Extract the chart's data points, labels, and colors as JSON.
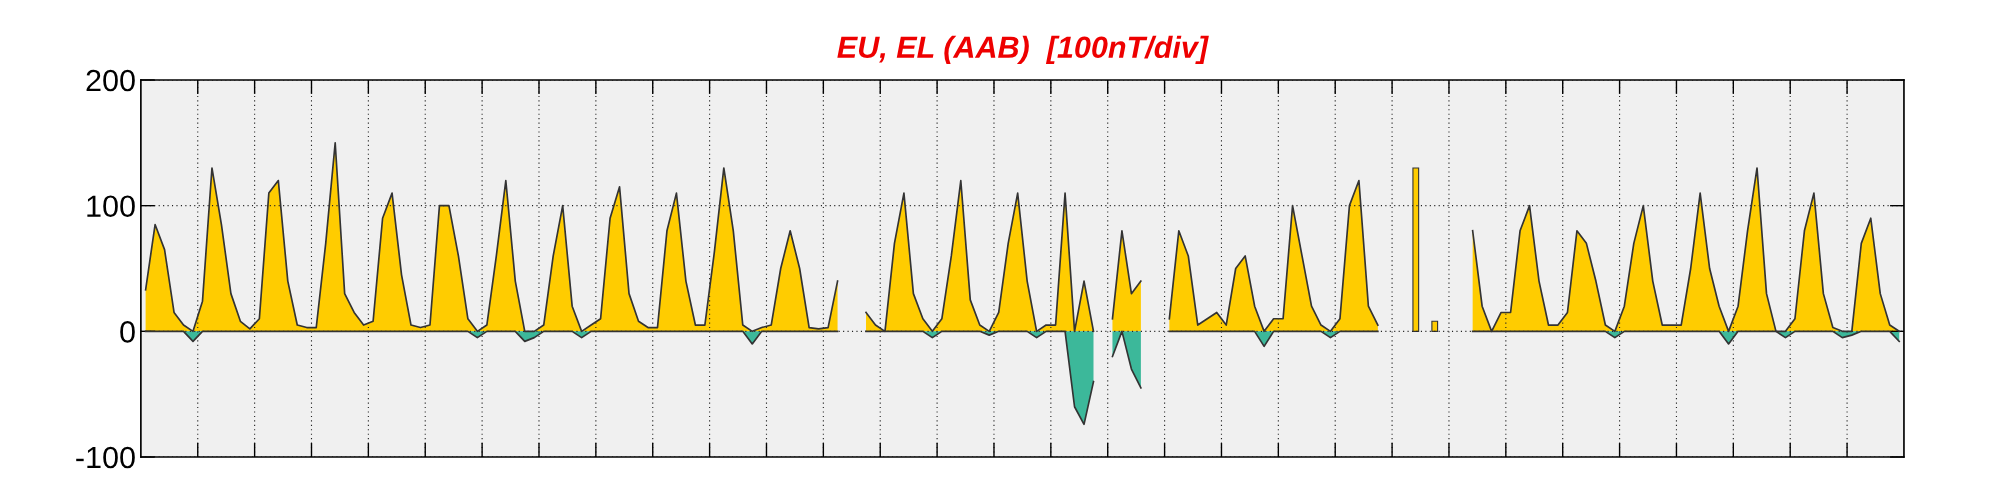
{
  "chart_data": {
    "type": "area",
    "title": "EU, EL (AAB)  [100nT/div]",
    "categories": [
      null,
      null,
      null,
      null,
      null,
      null,
      null,
      null,
      null,
      null,
      null,
      null,
      null,
      null,
      null,
      null,
      null,
      null,
      null,
      null,
      null,
      null,
      null,
      null,
      null,
      null,
      null,
      null,
      null,
      null,
      null,
      null,
      null,
      null,
      null,
      null,
      null,
      null,
      null,
      null,
      null,
      null,
      null,
      null,
      null,
      null,
      null,
      null,
      null,
      null,
      null,
      null,
      null,
      null,
      null,
      null,
      null,
      null,
      null,
      null,
      null,
      null,
      null,
      null,
      null,
      null,
      null,
      null,
      null,
      null,
      null,
      null,
      null,
      null,
      null,
      null,
      null,
      null,
      null,
      null,
      null,
      null,
      null,
      null,
      null,
      null,
      null,
      null,
      null,
      null,
      null,
      null,
      null,
      null,
      null,
      null,
      null,
      null,
      null,
      null,
      null,
      null,
      null,
      null,
      null,
      null,
      null,
      null,
      null,
      null,
      null,
      null,
      null,
      null,
      null,
      null,
      null,
      null,
      null,
      null,
      null,
      null,
      null,
      null,
      null,
      null,
      null,
      null,
      null,
      null,
      null,
      null,
      null,
      null,
      null,
      null,
      null,
      null,
      null,
      null,
      null,
      null,
      null,
      null,
      null,
      null,
      null,
      null,
      null,
      null,
      null,
      null,
      null,
      null,
      null,
      null,
      null,
      null,
      null,
      null,
      null,
      null,
      null,
      null,
      null,
      null,
      null,
      null,
      null,
      null,
      null,
      null,
      null,
      null,
      null,
      null,
      null,
      null,
      null,
      null,
      null,
      null,
      null,
      null,
      null,
      null
    ],
    "series": [
      {
        "color": "#ffcc00",
        "values": [
          33,
          85,
          65,
          15,
          5,
          0,
          24,
          130,
          85,
          30,
          8,
          2,
          10,
          110,
          120,
          40,
          5,
          3,
          3,
          70,
          150,
          30,
          15,
          5,
          8,
          90,
          110,
          45,
          5,
          3,
          5,
          100,
          100,
          60,
          10,
          0,
          5,
          60,
          120,
          40,
          0,
          0,
          5,
          60,
          100,
          20,
          0,
          5,
          10,
          90,
          115,
          30,
          8,
          3,
          3,
          80,
          110,
          40,
          5,
          5,
          63,
          130,
          80,
          5,
          0,
          3,
          5,
          50,
          80,
          50,
          3,
          2,
          3,
          40,
          null,
          null,
          15,
          5,
          0,
          70,
          110,
          30,
          10,
          0,
          10,
          60,
          120,
          25,
          5,
          0,
          15,
          70,
          110,
          40,
          0,
          5,
          5,
          110,
          0,
          40,
          0,
          null,
          10,
          80,
          30,
          40,
          null,
          null,
          10,
          80,
          60,
          5,
          10,
          15,
          5,
          50,
          60,
          20,
          0,
          10,
          10,
          100,
          60,
          20,
          5,
          0,
          10,
          100,
          120,
          20,
          5,
          null,
          null,
          null,
          130,
          null,
          8,
          null,
          null,
          null,
          80,
          20,
          0,
          15,
          15,
          80,
          100,
          40,
          5,
          5,
          15,
          80,
          70,
          40,
          5,
          0,
          20,
          70,
          100,
          40,
          5,
          5,
          5,
          50,
          110,
          50,
          20,
          0,
          20,
          80,
          130,
          30,
          0,
          0,
          10,
          80,
          110,
          30,
          3,
          0,
          0,
          70,
          90,
          30,
          5,
          0
        ]
      },
      {
        "color": "#3cb89a",
        "values": [
          0,
          0,
          0,
          0,
          0,
          -8,
          0,
          0,
          0,
          0,
          0,
          0,
          0,
          0,
          0,
          0,
          0,
          0,
          0,
          0,
          0,
          0,
          0,
          0,
          0,
          0,
          0,
          0,
          0,
          0,
          0,
          0,
          0,
          0,
          0,
          -5,
          0,
          0,
          0,
          0,
          -8,
          -5,
          0,
          0,
          0,
          0,
          -5,
          0,
          0,
          0,
          0,
          0,
          0,
          0,
          0,
          0,
          0,
          0,
          0,
          0,
          0,
          0,
          0,
          0,
          -10,
          0,
          0,
          0,
          0,
          0,
          0,
          0,
          0,
          0,
          null,
          null,
          0,
          0,
          0,
          0,
          0,
          0,
          0,
          -5,
          0,
          0,
          0,
          0,
          0,
          -3,
          0,
          0,
          0,
          0,
          -5,
          0,
          0,
          0,
          -60,
          -74,
          -40,
          null,
          -20,
          0,
          -30,
          -45,
          null,
          null,
          0,
          0,
          0,
          0,
          0,
          0,
          0,
          0,
          0,
          0,
          -12,
          0,
          0,
          0,
          0,
          0,
          0,
          -5,
          0,
          0,
          0,
          0,
          0,
          null,
          null,
          null,
          null,
          null,
          null,
          null,
          null,
          null,
          0,
          0,
          0,
          0,
          0,
          0,
          0,
          0,
          0,
          0,
          0,
          0,
          0,
          0,
          0,
          -5,
          0,
          0,
          0,
          0,
          0,
          0,
          0,
          0,
          0,
          0,
          0,
          -10,
          0,
          0,
          0,
          0,
          0,
          -5,
          0,
          0,
          0,
          0,
          0,
          -5,
          -3,
          0,
          0,
          0,
          0,
          -8
        ]
      }
    ],
    "ylim": [
      -100,
      200
    ],
    "yticks": [
      -100,
      0,
      100,
      200
    ],
    "grid": true
  }
}
